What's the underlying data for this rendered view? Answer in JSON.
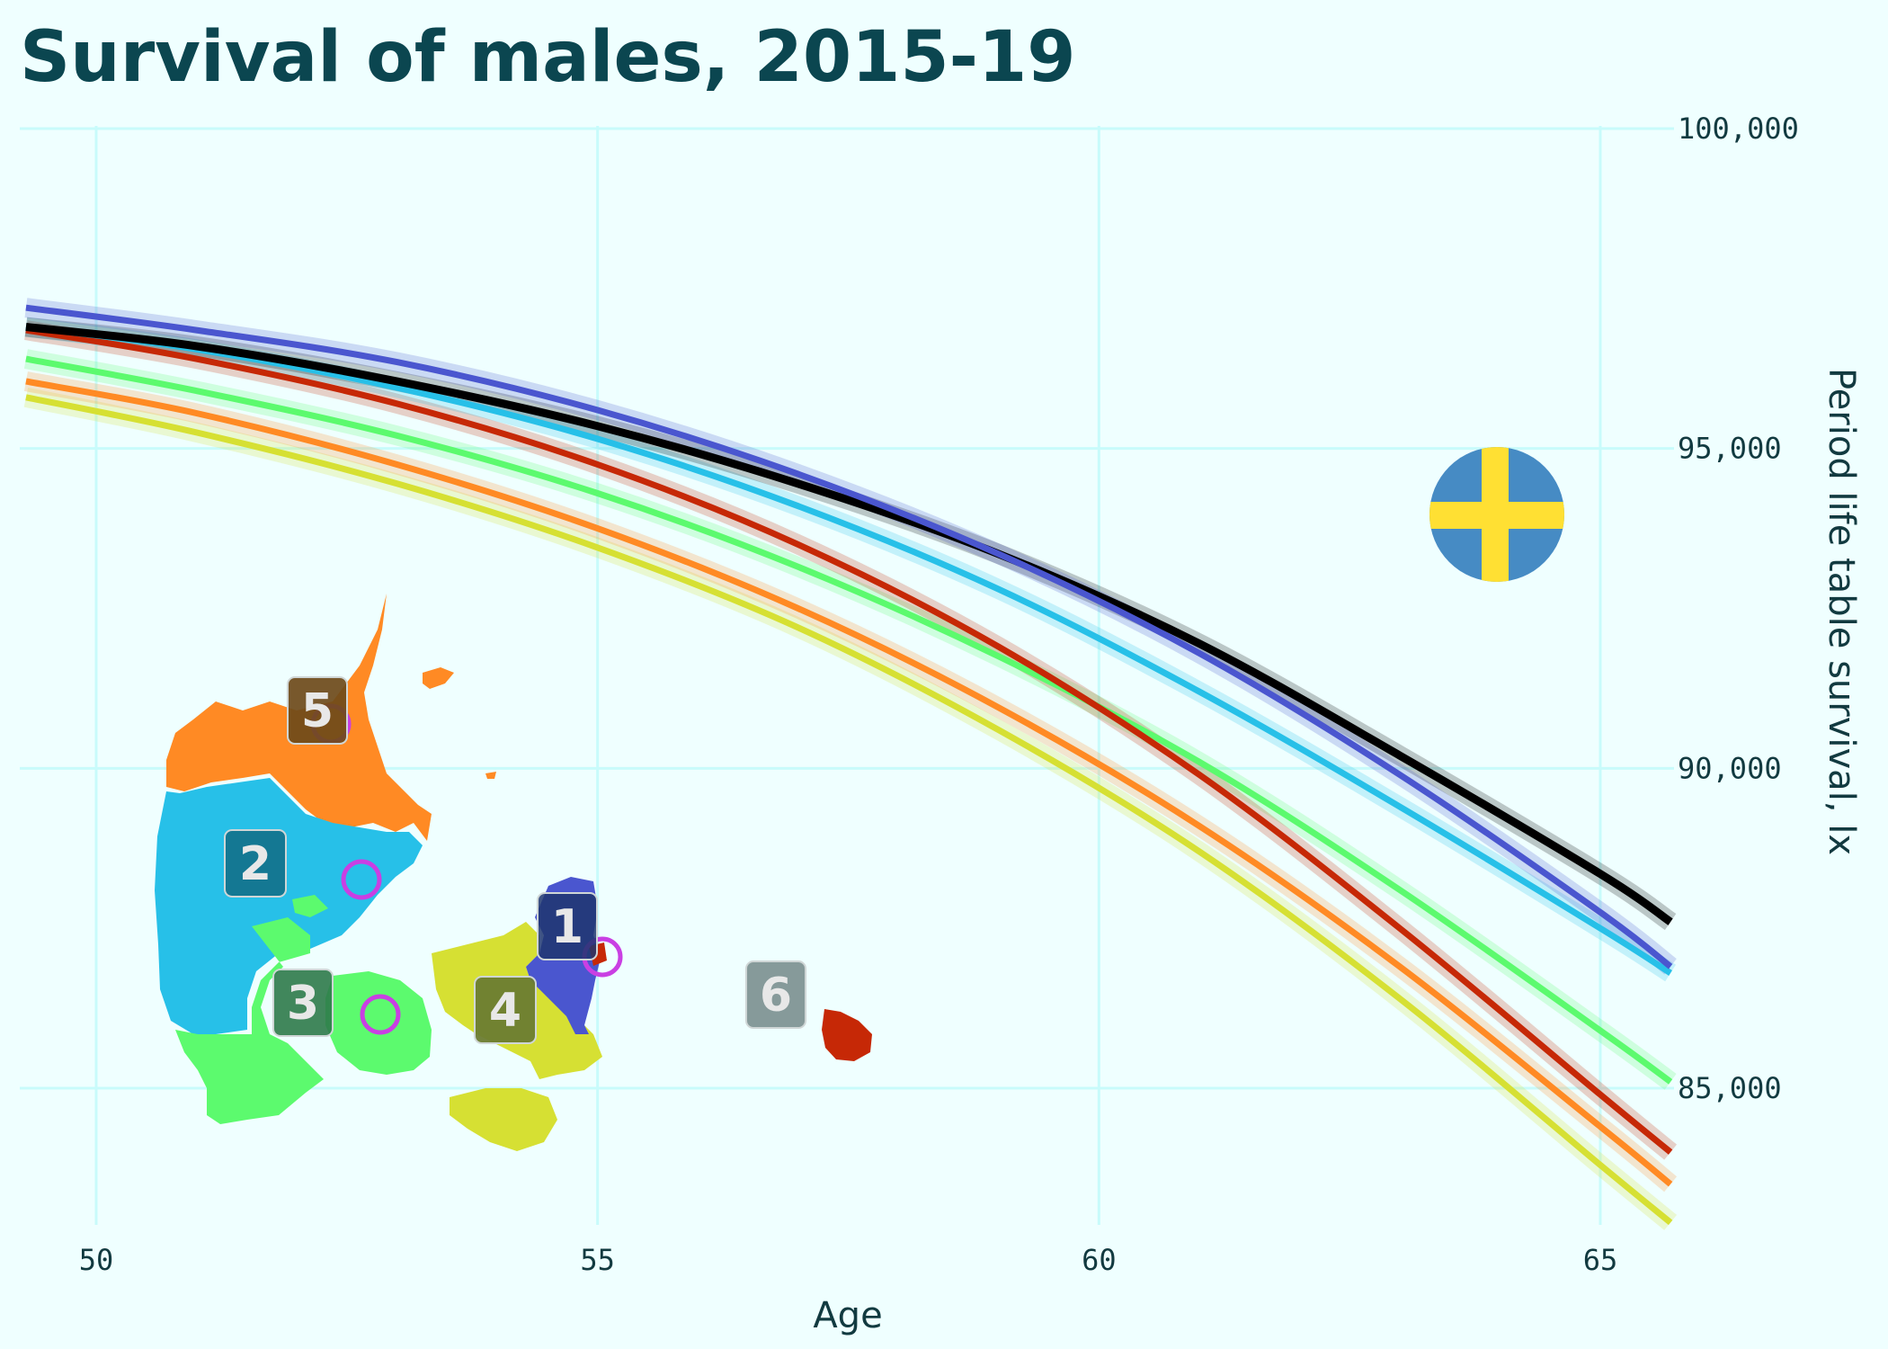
{
  "chart_data": {
    "type": "line",
    "title": "Survival of males, 2015-19",
    "xlabel": "Age",
    "ylabel": "Period life table survival, lx",
    "xlim": [
      49.3,
      65.7
    ],
    "ylim": [
      82000,
      101000
    ],
    "x_ticks": [
      50,
      55,
      60,
      65
    ],
    "y_ticks": [
      85000,
      90000,
      95000,
      100000
    ],
    "x_tick_labels": [
      "50",
      "55",
      "60",
      "65"
    ],
    "y_tick_labels": [
      "85,000",
      "90,000",
      "95,000",
      "100,000"
    ],
    "y_axis_position": "right",
    "grid": true,
    "legend": "inset map of Denmark regions, bottom-left",
    "x": [
      49.3,
      51,
      53,
      55,
      57,
      59,
      61,
      63,
      65,
      65.7
    ],
    "series": [
      {
        "color": "#d6e033",
        "values": [
          95.8,
          95.25,
          94.45,
          93.45,
          92.2,
          90.6,
          88.7,
          86.4,
          83.8,
          82.9
        ]
      },
      {
        "color": "#ff8a24",
        "values": [
          96.05,
          95.55,
          94.75,
          93.75,
          92.5,
          90.95,
          89.1,
          86.9,
          84.4,
          83.5
        ]
      },
      {
        "color": "#5cfa6e",
        "values": [
          96.4,
          95.9,
          95.2,
          94.3,
          93.15,
          91.75,
          90.1,
          88.1,
          85.9,
          85.1
        ]
      },
      {
        "color": "#c62806",
        "values": [
          96.85,
          96.4,
          95.7,
          94.75,
          93.5,
          91.9,
          89.9,
          87.5,
          84.9,
          84.0
        ]
      },
      {
        "color": "#27c0e8",
        "values": [
          96.9,
          96.55,
          95.95,
          95.15,
          94.1,
          92.8,
          91.2,
          89.4,
          87.5,
          86.8
        ]
      },
      {
        "color": "#000000",
        "values": [
          96.9,
          96.6,
          96.05,
          95.35,
          94.45,
          93.35,
          91.95,
          90.2,
          88.35,
          87.6
        ]
      },
      {
        "color": "#4a56cf",
        "values": [
          97.2,
          96.85,
          96.35,
          95.6,
          94.6,
          93.35,
          91.8,
          89.9,
          87.75,
          86.9
        ]
      }
    ]
  },
  "map_labels": [
    "1",
    "2",
    "3",
    "4",
    "5",
    "6"
  ],
  "map_colors": {
    "1": "#4a56cf",
    "2": "#27c0e8",
    "3": "#5cfa6e",
    "4": "#d6e033",
    "5": "#ff8a24",
    "6": "#c62806"
  },
  "flag_icon": "sweden-flag-icon",
  "flag_colors": {
    "blue": "#468bc4",
    "yellow": "#ffe033"
  }
}
